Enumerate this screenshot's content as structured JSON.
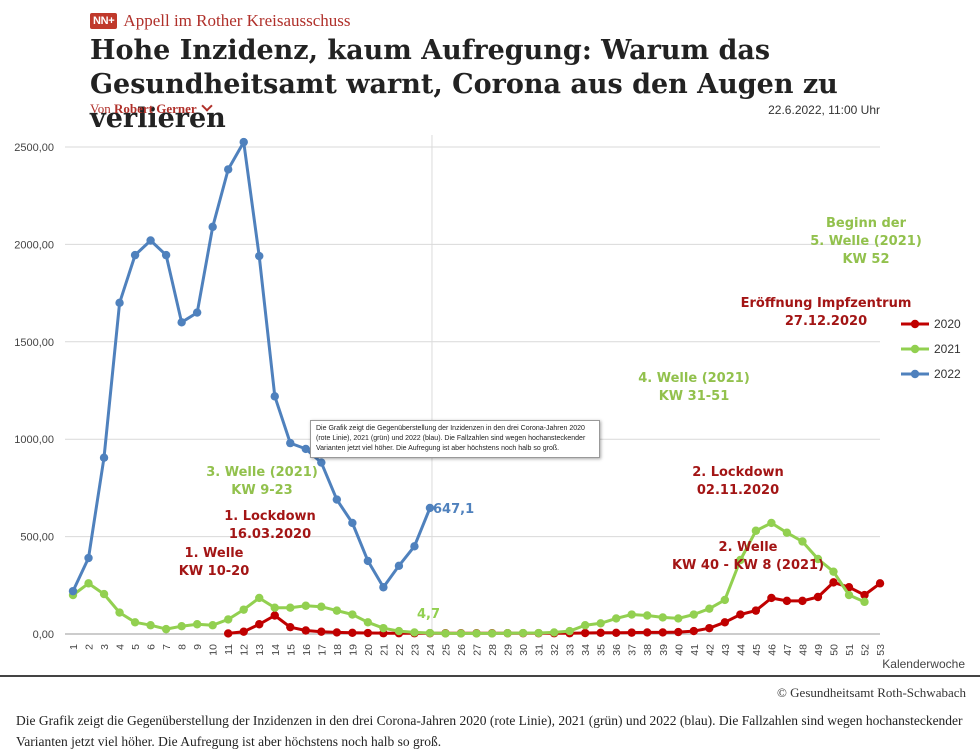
{
  "header": {
    "logo_text": "NN+",
    "kicker": "Appell im Rother Kreisausschuss",
    "headline": "Hohe Inzidenz, kaum Aufregung: Warum das Gesundheitsamt warnt, Corona aus den Augen zu verlieren",
    "byline_prefix": "Von",
    "author": "Robert Gerner",
    "date": "22.6.2022, 11:00 Uhr"
  },
  "colors": {
    "y2020": "#c00000",
    "y2021": "#92d050",
    "y2022": "#4f81bd",
    "brand": "#b0302a"
  },
  "chart_data": {
    "type": "line",
    "title": "",
    "xlabel": "Kalenderwoche",
    "ylabel": "",
    "ylim": [
      0,
      2500
    ],
    "yticks": [
      "0,00",
      "500,00",
      "1000,00",
      "1500,00",
      "2000,00",
      "2500,00"
    ],
    "x": [
      1,
      2,
      3,
      4,
      5,
      6,
      7,
      8,
      9,
      10,
      11,
      12,
      13,
      14,
      15,
      16,
      17,
      18,
      19,
      20,
      21,
      22,
      23,
      24,
      25,
      26,
      27,
      28,
      29,
      30,
      31,
      32,
      33,
      34,
      35,
      36,
      37,
      38,
      39,
      40,
      41,
      42,
      43,
      44,
      45,
      46,
      47,
      48,
      49,
      50,
      51,
      52,
      53
    ],
    "series": [
      {
        "name": "2020",
        "values": [
          null,
          null,
          null,
          null,
          null,
          null,
          null,
          null,
          null,
          null,
          3,
          12,
          50,
          95,
          35,
          18,
          12,
          8,
          6,
          5,
          4,
          4,
          4,
          4,
          4,
          4,
          4,
          4,
          4,
          4,
          4,
          4,
          4,
          5,
          6,
          6,
          7,
          8,
          8,
          10,
          15,
          30,
          60,
          100,
          120,
          185,
          170,
          170,
          190,
          265,
          240,
          200,
          260
        ]
      },
      {
        "name": "2021",
        "values": [
          200,
          260,
          205,
          110,
          60,
          45,
          25,
          40,
          50,
          45,
          75,
          125,
          185,
          135,
          135,
          145,
          140,
          120,
          100,
          60,
          30,
          15,
          8,
          5,
          3,
          3,
          3,
          3,
          4,
          5,
          5,
          8,
          15,
          45,
          55,
          80,
          100,
          95,
          85,
          80,
          100,
          130,
          175,
          380,
          530,
          570,
          520,
          475,
          385,
          320,
          200,
          165,
          null
        ]
      },
      {
        "name": "2022",
        "values": [
          220,
          390,
          905,
          1700,
          1945,
          2020,
          1945,
          1600,
          1650,
          2090,
          2385,
          2525,
          1940,
          1220,
          980,
          950,
          880,
          690,
          570,
          375,
          240,
          350,
          450,
          647.1,
          null,
          null,
          null,
          null,
          null,
          null,
          null,
          null,
          null,
          null,
          null,
          null,
          null,
          null,
          null,
          null,
          null,
          null,
          null,
          null,
          null,
          null,
          null,
          null,
          null,
          null,
          null,
          null,
          null
        ]
      }
    ],
    "value_label": "647,1",
    "marker_label": "4,7",
    "annotations": [
      {
        "id": "welle1",
        "color": "2020",
        "lines": [
          "1. Welle",
          "KW 10-20"
        ]
      },
      {
        "id": "lockdown1",
        "color": "2020",
        "lines": [
          "1. Lockdown",
          "16.03.2020"
        ]
      },
      {
        "id": "welle3",
        "color": "2021",
        "lines": [
          "3. Welle (2021)",
          "KW 9-23"
        ]
      },
      {
        "id": "welle4",
        "color": "2021",
        "lines": [
          "4. Welle (2021)",
          "KW 31-51"
        ]
      },
      {
        "id": "lockdown2",
        "color": "2020",
        "lines": [
          "2. Lockdown",
          "02.11.2020"
        ]
      },
      {
        "id": "welle2",
        "color": "2020",
        "lines": [
          "2. Welle",
          "KW 40 - KW 8 (2021)"
        ]
      },
      {
        "id": "impfzentrum",
        "color": "2020",
        "lines": [
          "Eröffnung Impfzentrum",
          "27.12.2020"
        ]
      },
      {
        "id": "welle5",
        "color": "2021",
        "lines": [
          "Beginn der",
          "5. Welle (2021)",
          "KW 52"
        ]
      }
    ],
    "legend": [
      "2020",
      "2021",
      "2022"
    ],
    "legend_position": "right",
    "grid": true
  },
  "tooltip": "Die Grafik zeigt die Gegenüberstellung der Inzidenzen in den drei Corona-Jahren 2020 (rote Linie), 2021 (grün) und 2022 (blau). Die Fallzahlen sind wegen hochansteckender Varianten jetzt viel höher. Die Aufregung ist aber höchstens noch halb so groß.",
  "credit": "© Gesundheitsamt Roth-Schwabach",
  "caption": "Die Grafik zeigt die Gegenüberstellung der Inzidenzen in den drei Corona-Jahren 2020 (rote Linie), 2021 (grün) und 2022 (blau). Die Fallzahlen sind wegen hochansteckender Varianten jetzt viel höher. Die Aufregung ist aber höchstens noch halb so groß."
}
